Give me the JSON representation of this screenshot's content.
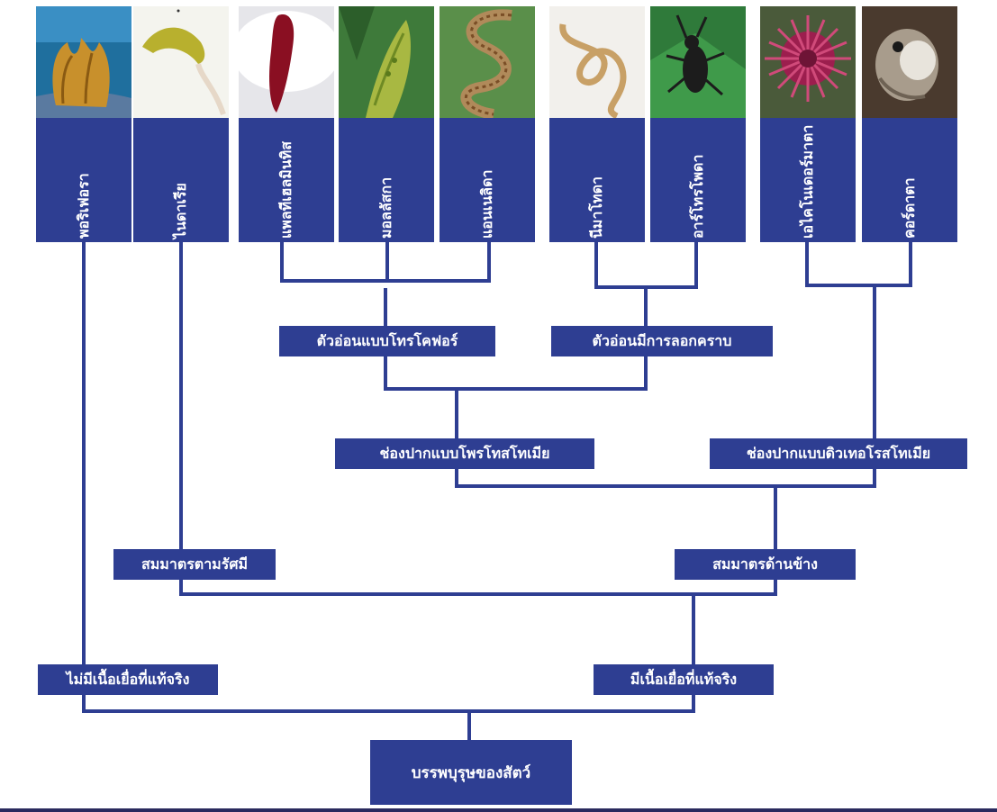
{
  "taxa": [
    {
      "name": "พอริเฟอรา",
      "photo": "sponge-photo"
    },
    {
      "name": "ไนดาเรีย",
      "photo": "cnidarian-photo"
    },
    {
      "name": "แพลทีเฮลมินทิส",
      "photo": "flatworm-photo"
    },
    {
      "name": "มอลลัสกา",
      "photo": "mollusc-photo"
    },
    {
      "name": "แอนเนลิดา",
      "photo": "annelid-photo"
    },
    {
      "name": "นีมาโทดา",
      "photo": "nematode-photo"
    },
    {
      "name": "อาร์โทรโพดา",
      "photo": "arthropod-photo"
    },
    {
      "name": "เอไคโนเดอร์มาตา",
      "photo": "echinoderm-photo"
    },
    {
      "name": "คอร์ดาตา",
      "photo": "chordate-photo"
    }
  ],
  "traits": {
    "trochophore": "ตัวอ่อนแบบโทรโคฟอร์",
    "molting": "ตัวอ่อนมีการลอกคราบ",
    "protostome": "ช่องปากแบบโพรโทสโทเมีย",
    "deuterostome": "ช่องปากแบบดิวเทอโรสโทเมีย",
    "radial": "สมมาตรตามรัศมี",
    "bilateral": "สมมาตรด้านข้าง",
    "no_true_tissue": "ไม่มีเนื้อเยื่อที่แท้จริง",
    "true_tissue": "มีเนื้อเยื่อที่แท้จริง",
    "ancestor": "บรรพบุรุษของสัตว์"
  },
  "colors": {
    "band": "#2e3e92",
    "line": "#2e3e92",
    "text": "#ffffff"
  }
}
